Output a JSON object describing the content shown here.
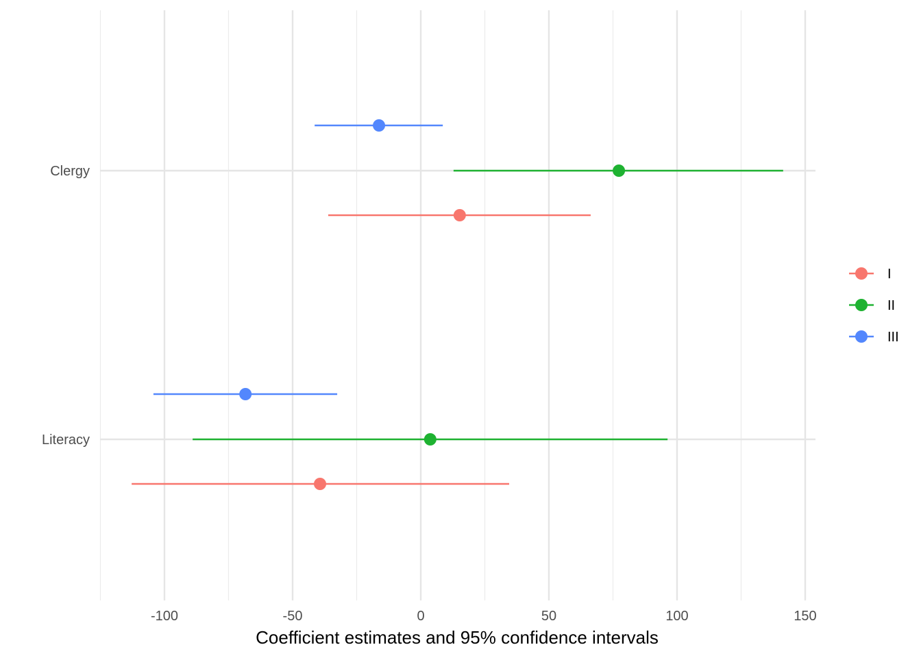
{
  "chart_data": {
    "type": "scatter",
    "subtype": "coefficient-plot",
    "title": "",
    "xlabel": "Coefficient estimates and 95% confidence intervals",
    "ylabel": "",
    "xlim": [
      -125,
      155
    ],
    "x_ticks": [
      -100,
      -50,
      0,
      50,
      100,
      150
    ],
    "x_tick_labels": [
      "-100",
      "-50",
      "0",
      "50",
      "100",
      "150"
    ],
    "categories": [
      "Clergy",
      "Literacy"
    ],
    "grid": true,
    "legend_position": "right",
    "series": [
      {
        "name": "I",
        "color": "#F8766D",
        "points": [
          {
            "category": "Clergy",
            "estimate": 15.2,
            "lower": -36.1,
            "upper": 66.3
          },
          {
            "category": "Literacy",
            "estimate": -39.3,
            "lower": -112.8,
            "upper": 34.5
          }
        ]
      },
      {
        "name": "II",
        "color": "#1EB231",
        "points": [
          {
            "category": "Clergy",
            "estimate": 77.3,
            "lower": 12.8,
            "upper": 141.4
          },
          {
            "category": "Literacy",
            "estimate": 3.7,
            "lower": -89.0,
            "upper": 96.3
          }
        ]
      },
      {
        "name": "III",
        "color": "#5387FD",
        "points": [
          {
            "category": "Clergy",
            "estimate": -16.3,
            "lower": -41.4,
            "upper": 8.6
          },
          {
            "category": "Literacy",
            "estimate": -68.4,
            "lower": -104.3,
            "upper": -32.6
          }
        ]
      }
    ]
  }
}
